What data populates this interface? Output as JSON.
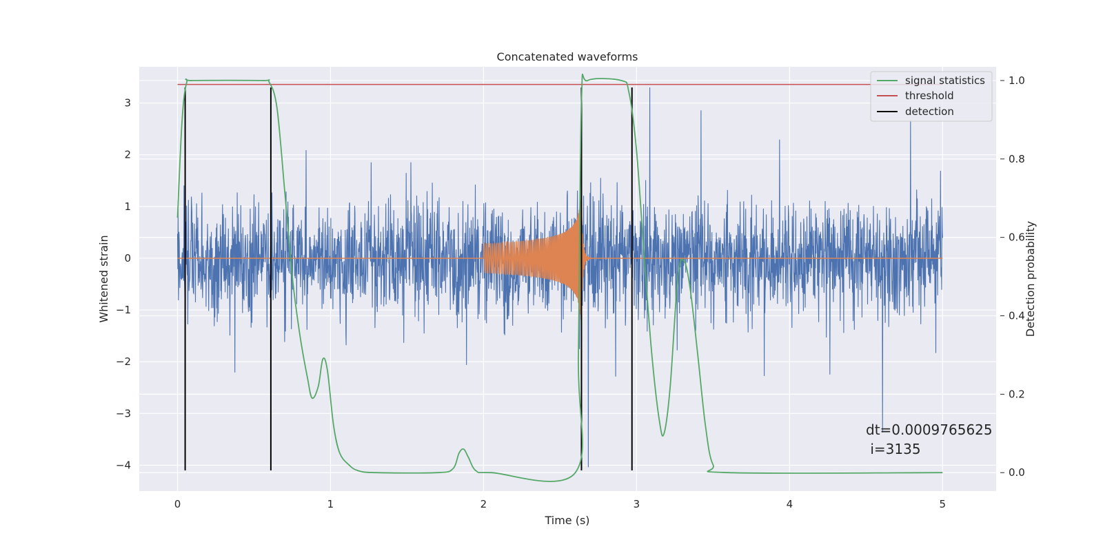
{
  "chart_data": {
    "type": "line",
    "title": "Concatenated waveforms",
    "xlabel": "Time (s)",
    "ylabel": "Whitened strain",
    "ylabel_right": "Detection probability",
    "xlim": [
      -0.25,
      5.35
    ],
    "ylim": [
      -4.5,
      3.7
    ],
    "ylim_right": [
      -0.047,
      1.035
    ],
    "x_ticks": [
      0,
      1,
      2,
      3,
      4,
      5
    ],
    "y_ticks": [
      3,
      2,
      1,
      0,
      -1,
      -2,
      -3,
      -4
    ],
    "y_ticks_right": [
      1.0,
      0.8,
      0.6,
      0.4,
      0.2,
      0.0
    ],
    "grid": true,
    "legend_position": "top-right",
    "colors": {
      "strain": "#4c72b0",
      "injection": "#dd8452",
      "signal_statistics": "#55a868",
      "threshold": "#c44e52",
      "detection": "#000000",
      "background": "#eaeaf2"
    },
    "series": [
      {
        "name": "",
        "axis": "left",
        "description_value_range": [
          -4.1,
          3.3
        ],
        "x_range": [
          0,
          5
        ]
      },
      {
        "name": "",
        "axis": "left",
        "chirp_x_range": [
          2.0,
          2.64
        ],
        "chirp_peak_amplitude": 1.4
      },
      {
        "name": "signal statistics",
        "axis": "right",
        "points": [
          [
            0.0,
            0.65
          ],
          [
            0.03,
            0.9
          ],
          [
            0.06,
            0.995
          ],
          [
            0.1,
            1.0
          ],
          [
            0.55,
            1.0
          ],
          [
            0.6,
            0.995
          ],
          [
            0.65,
            0.93
          ],
          [
            0.7,
            0.72
          ],
          [
            0.75,
            0.5
          ],
          [
            0.8,
            0.35
          ],
          [
            0.85,
            0.24
          ],
          [
            0.88,
            0.19
          ],
          [
            0.92,
            0.22
          ],
          [
            0.95,
            0.29
          ],
          [
            0.98,
            0.26
          ],
          [
            1.02,
            0.12
          ],
          [
            1.06,
            0.05
          ],
          [
            1.12,
            0.02
          ],
          [
            1.18,
            0.005
          ],
          [
            1.3,
            0.0
          ],
          [
            1.7,
            0.0
          ],
          [
            1.8,
            0.01
          ],
          [
            1.84,
            0.05
          ],
          [
            1.87,
            0.06
          ],
          [
            1.9,
            0.04
          ],
          [
            1.95,
            0.005
          ],
          [
            2.05,
            0.0
          ],
          [
            2.6,
            0.0
          ],
          [
            2.62,
            0.3
          ],
          [
            2.64,
            0.95
          ],
          [
            2.68,
            1.0
          ],
          [
            2.9,
            1.0
          ],
          [
            2.95,
            0.97
          ],
          [
            3.0,
            0.82
          ],
          [
            3.05,
            0.55
          ],
          [
            3.1,
            0.3
          ],
          [
            3.15,
            0.13
          ],
          [
            3.18,
            0.1
          ],
          [
            3.22,
            0.22
          ],
          [
            3.27,
            0.5
          ],
          [
            3.31,
            0.54
          ],
          [
            3.35,
            0.47
          ],
          [
            3.4,
            0.3
          ],
          [
            3.45,
            0.12
          ],
          [
            3.5,
            0.02
          ],
          [
            3.6,
            0.0
          ],
          [
            5.0,
            0.0
          ]
        ]
      },
      {
        "name": "threshold",
        "axis": "right",
        "value": 0.99,
        "x_range": [
          0,
          5
        ]
      },
      {
        "name": "detection",
        "axis": "left",
        "x_positions": [
          0.05,
          0.61,
          2.64,
          2.97
        ],
        "y_range": [
          -4.1,
          3.3
        ]
      }
    ],
    "legend": [
      "signal statistics",
      "threshold",
      "detection"
    ],
    "annotations": [
      {
        "text": "dt=0.0009765625",
        "x": 4.5,
        "y": -3.3
      },
      {
        "text": " i=3135",
        "x": 4.5,
        "y": -3.67
      }
    ]
  }
}
